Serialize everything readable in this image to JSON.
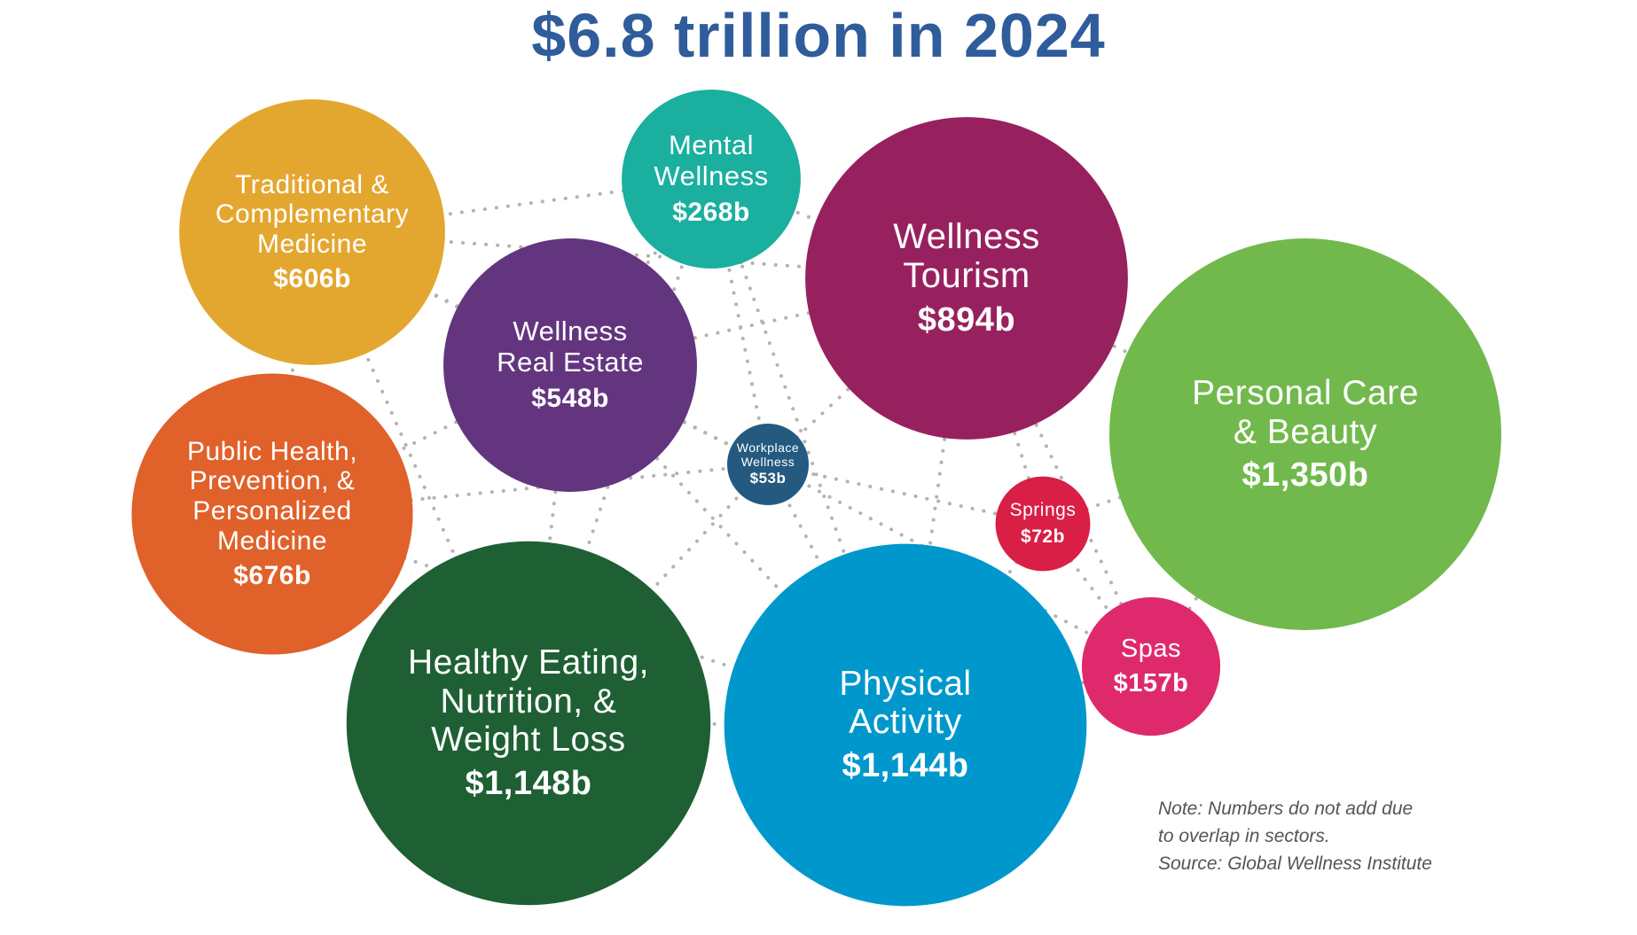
{
  "chart_data": {
    "type": "bubble",
    "title": "$6.8 trillion in 2024",
    "series": [
      {
        "name": "Traditional & Complementary Medicine",
        "label_lines": [
          "Traditional &",
          "Complementary",
          "Medicine"
        ],
        "value": 606,
        "value_label": "$606b",
        "color": "#e3a72f"
      },
      {
        "name": "Mental Wellness",
        "label_lines": [
          "Mental",
          "Wellness"
        ],
        "value": 268,
        "value_label": "$268b",
        "color": "#1aaf9f"
      },
      {
        "name": "Wellness Tourism",
        "label_lines": [
          "Wellness",
          "Tourism"
        ],
        "value": 894,
        "value_label": "$894b",
        "color": "#97215f"
      },
      {
        "name": "Wellness Real Estate",
        "label_lines": [
          "Wellness",
          "Real Estate"
        ],
        "value": 548,
        "value_label": "$548b",
        "color": "#63357f"
      },
      {
        "name": "Personal Care & Beauty",
        "label_lines": [
          "Personal Care",
          "& Beauty"
        ],
        "value": 1350,
        "value_label": "$1,350b",
        "color": "#72b94d"
      },
      {
        "name": "Public Health, Prevention, & Personalized Medicine",
        "label_lines": [
          "Public Health,",
          "Prevention, &",
          "Personalized",
          "Medicine"
        ],
        "value": 676,
        "value_label": "$676b",
        "color": "#e0612a"
      },
      {
        "name": "Workplace Wellness",
        "label_lines": [
          "Workplace",
          "Wellness"
        ],
        "value": 53,
        "value_label": "$53b",
        "color": "#245a80"
      },
      {
        "name": "Springs",
        "label_lines": [
          "Springs"
        ],
        "value": 72,
        "value_label": "$72b",
        "color": "#d91f45"
      },
      {
        "name": "Spas",
        "label_lines": [
          "Spas"
        ],
        "value": 157,
        "value_label": "$157b",
        "color": "#de2a6c"
      },
      {
        "name": "Healthy Eating, Nutrition, & Weight Loss",
        "label_lines": [
          "Healthy Eating,",
          "Nutrition, &",
          "Weight Loss"
        ],
        "value": 1148,
        "value_label": "$1,148b",
        "color": "#1e6034"
      },
      {
        "name": "Physical Activity",
        "label_lines": [
          "Physical",
          "Activity"
        ],
        "value": 1144,
        "value_label": "$1,144b",
        "color": "#0098cc"
      }
    ],
    "annotations": [
      "Note: Numbers do not add due",
      "to overlap in sectors.",
      "Source: Global Wellness Institute"
    ]
  }
}
